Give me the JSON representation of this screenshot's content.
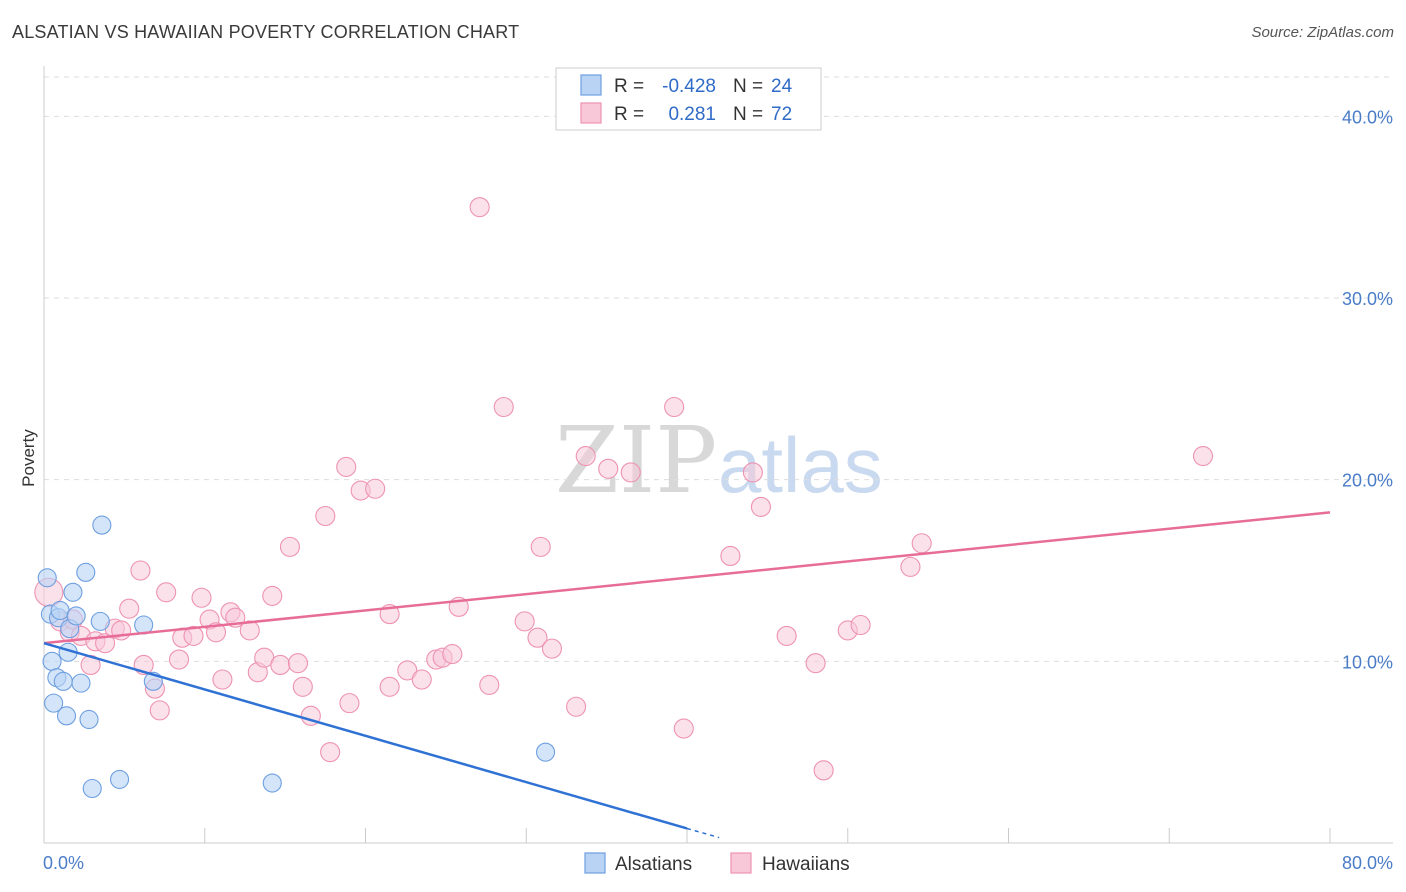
{
  "title": "ALSATIAN VS HAWAIIAN POVERTY CORRELATION CHART",
  "source": "Source: ZipAtlas.com",
  "watermark": {
    "zip": "ZIP",
    "atlas": "atlas"
  },
  "colors": {
    "alsatians_fill": "#b9d3f5",
    "alsatians_stroke": "#6d9fe0",
    "alsatians_line": "#2f72d4",
    "hawaiians_fill": "#f8c8d8",
    "hawaiians_stroke": "#ee93b2",
    "hawaiians_line": "#e76d98",
    "grid": "#dddddd",
    "tick_text": "#4a7cc7"
  },
  "legend": {
    "rows": [
      {
        "r_label": "R =",
        "r_value": "-0.428",
        "n_label": "N =",
        "n_value": "24"
      },
      {
        "r_label": "R =",
        "r_value": "0.281",
        "n_label": "N =",
        "n_value": "72"
      }
    ]
  },
  "chart_data": {
    "type": "scatter",
    "title": "ALSATIAN VS HAWAIIAN POVERTY CORRELATION CHART",
    "xlabel": "",
    "ylabel": "Poverty",
    "xlim": [
      0,
      80
    ],
    "ylim": [
      0,
      42
    ],
    "x_tick_labels": [
      "0.0%",
      "80.0%"
    ],
    "y_ticks": [
      10,
      20,
      30,
      40
    ],
    "y_tick_labels": [
      "10.0%",
      "20.0%",
      "30.0%",
      "40.0%"
    ],
    "legend_position": "bottom-center",
    "series": [
      {
        "name": "Alsatians",
        "R": -0.428,
        "N": 24,
        "trend": {
          "x0": 0,
          "y0": 11.0,
          "x1": 40,
          "y1": 0.8,
          "dash_to_x": 42,
          "dash_to_y": 0.3
        },
        "points": [
          [
            0.2,
            14.6
          ],
          [
            0.4,
            12.6
          ],
          [
            0.5,
            10.0
          ],
          [
            0.6,
            7.7
          ],
          [
            0.8,
            9.1
          ],
          [
            0.9,
            12.4
          ],
          [
            1.0,
            12.8
          ],
          [
            1.2,
            8.9
          ],
          [
            1.4,
            7.0
          ],
          [
            1.5,
            10.5
          ],
          [
            1.6,
            11.8
          ],
          [
            1.8,
            13.8
          ],
          [
            2.0,
            12.5
          ],
          [
            2.3,
            8.8
          ],
          [
            2.6,
            14.9
          ],
          [
            2.8,
            6.8
          ],
          [
            3.0,
            3.0
          ],
          [
            3.5,
            12.2
          ],
          [
            3.6,
            17.5
          ],
          [
            4.7,
            3.5
          ],
          [
            6.2,
            12.0
          ],
          [
            6.8,
            8.9
          ],
          [
            14.2,
            3.3
          ],
          [
            31.2,
            5.0
          ]
        ]
      },
      {
        "name": "Hawaiians",
        "R": 0.281,
        "N": 72,
        "trend": {
          "x0": 0,
          "y0": 11.0,
          "x1": 80,
          "y1": 18.2
        },
        "points": [
          [
            0.3,
            13.8
          ],
          [
            1.0,
            12.2
          ],
          [
            1.6,
            11.6
          ],
          [
            1.8,
            12.3
          ],
          [
            2.3,
            11.4
          ],
          [
            2.9,
            9.8
          ],
          [
            3.2,
            11.1
          ],
          [
            3.8,
            11.0
          ],
          [
            4.4,
            11.8
          ],
          [
            4.8,
            11.7
          ],
          [
            5.3,
            12.9
          ],
          [
            6.0,
            15.0
          ],
          [
            6.2,
            9.8
          ],
          [
            6.9,
            8.5
          ],
          [
            7.2,
            7.3
          ],
          [
            7.6,
            13.8
          ],
          [
            8.4,
            10.1
          ],
          [
            8.6,
            11.3
          ],
          [
            9.3,
            11.4
          ],
          [
            9.8,
            13.5
          ],
          [
            10.3,
            12.3
          ],
          [
            10.7,
            11.6
          ],
          [
            11.1,
            9.0
          ],
          [
            11.6,
            12.7
          ],
          [
            11.9,
            12.4
          ],
          [
            12.8,
            11.7
          ],
          [
            13.3,
            9.4
          ],
          [
            13.7,
            10.2
          ],
          [
            14.2,
            13.6
          ],
          [
            14.7,
            9.8
          ],
          [
            15.3,
            16.3
          ],
          [
            15.8,
            9.9
          ],
          [
            16.1,
            8.6
          ],
          [
            16.6,
            7.0
          ],
          [
            17.5,
            18.0
          ],
          [
            17.8,
            5.0
          ],
          [
            18.8,
            20.7
          ],
          [
            19.0,
            7.7
          ],
          [
            19.7,
            19.4
          ],
          [
            20.6,
            19.5
          ],
          [
            21.5,
            12.6
          ],
          [
            21.5,
            8.6
          ],
          [
            22.6,
            9.5
          ],
          [
            23.5,
            9.0
          ],
          [
            24.4,
            10.1
          ],
          [
            24.8,
            10.2
          ],
          [
            25.4,
            10.4
          ],
          [
            25.8,
            13.0
          ],
          [
            27.1,
            35.0
          ],
          [
            27.7,
            8.7
          ],
          [
            28.6,
            24.0
          ],
          [
            29.9,
            12.2
          ],
          [
            30.7,
            11.3
          ],
          [
            30.9,
            16.3
          ],
          [
            31.6,
            10.7
          ],
          [
            33.1,
            7.5
          ],
          [
            33.7,
            21.3
          ],
          [
            35.1,
            20.6
          ],
          [
            36.5,
            20.4
          ],
          [
            39.2,
            24.0
          ],
          [
            39.8,
            6.3
          ],
          [
            42.7,
            15.8
          ],
          [
            44.1,
            20.4
          ],
          [
            44.6,
            18.5
          ],
          [
            46.2,
            11.4
          ],
          [
            48.0,
            9.9
          ],
          [
            48.5,
            4.0
          ],
          [
            50.0,
            11.7
          ],
          [
            50.8,
            12.0
          ],
          [
            53.9,
            15.2
          ],
          [
            54.6,
            16.5
          ],
          [
            72.1,
            21.3
          ]
        ]
      }
    ]
  },
  "bottom_legend": [
    "Alsatians",
    "Hawaiians"
  ]
}
